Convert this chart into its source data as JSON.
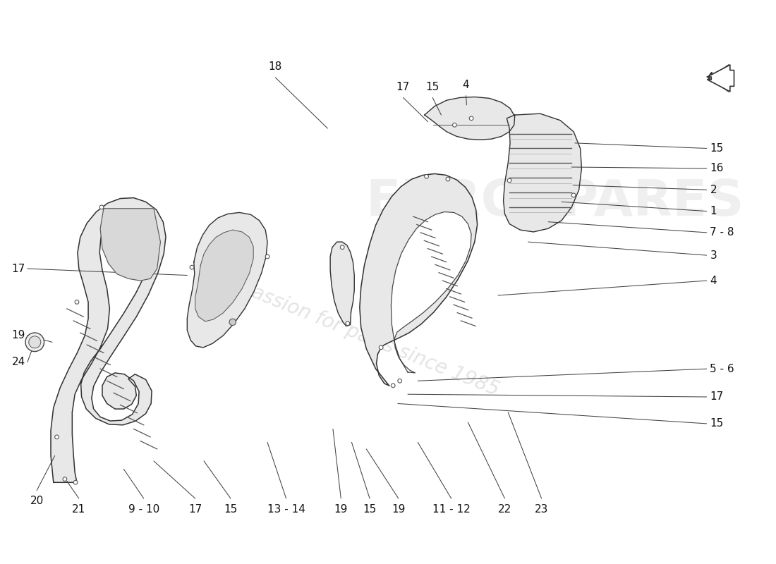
{
  "bg_color": "#ffffff",
  "edge_color": "#333333",
  "fill_color": "#ebebeb",
  "fill_color2": "#f2f2f2",
  "label_fontsize": 11,
  "watermark_text1": "a passion for parts since 1985",
  "watermark_text2": "EUROSPARES",
  "right_labels": [
    [
      "15",
      1065,
      200
    ],
    [
      "16",
      1065,
      230
    ],
    [
      "2",
      1065,
      262
    ],
    [
      "1",
      1065,
      294
    ],
    [
      "7 - 8",
      1065,
      326
    ],
    [
      "3",
      1065,
      360
    ],
    [
      "4",
      1065,
      398
    ],
    [
      "5 - 6",
      1065,
      530
    ],
    [
      "17",
      1065,
      572
    ],
    [
      "15",
      1065,
      612
    ]
  ],
  "bottom_labels": [
    [
      "20",
      55,
      718
    ],
    [
      "21",
      118,
      730
    ],
    [
      "9 - 10",
      215,
      730
    ],
    [
      "17",
      292,
      730
    ],
    [
      "15",
      345,
      730
    ],
    [
      "13 - 14",
      428,
      730
    ],
    [
      "19",
      510,
      730
    ],
    [
      "15",
      553,
      730
    ],
    [
      "19",
      596,
      730
    ],
    [
      "11 - 12",
      675,
      730
    ],
    [
      "22",
      755,
      730
    ],
    [
      "23",
      810,
      730
    ]
  ]
}
